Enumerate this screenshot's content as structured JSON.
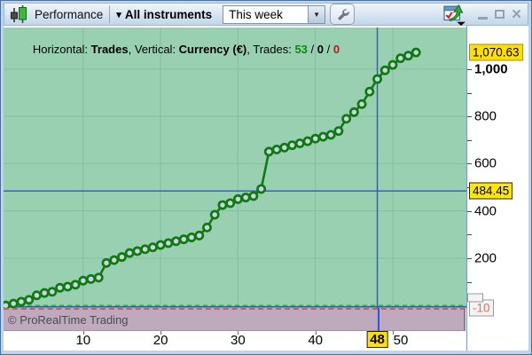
{
  "window": {
    "title": "Performance",
    "instrument_selector": {
      "label": "All instruments",
      "chevron": "▾"
    },
    "period_selector": {
      "value": "This week",
      "arrow": "▼"
    },
    "controls": {
      "minimize": "",
      "maximize": "",
      "close": "×"
    }
  },
  "info_bar": {
    "h_label": "Horizontal: ",
    "h_value": "Trades",
    "sep1": ", ",
    "v_label": "Vertical: ",
    "v_value": "Currency (€)",
    "sep2": ", ",
    "t_label": "Trades: ",
    "wins": "53",
    "slash1": " / ",
    "neutral": "0",
    "slash2": " / ",
    "losses": "0"
  },
  "footer": {
    "copyright": "© ProRealTime Trading"
  },
  "colors": {
    "plot_bg": "#99d0b1",
    "grid": "#83bfa0",
    "line": "#107a10",
    "marker_fill": "#c9d6e2",
    "crosshair": "#2d52e8",
    "zero_line": "#2fae2f",
    "bottom_line": "#2d52e8",
    "min_line": "#e05555",
    "negative_band": "#bfa9bd",
    "highlight_bg": "#ffe000"
  },
  "chart_data": {
    "type": "line",
    "xlabel": "Trades",
    "ylabel": "Currency (€)",
    "x_is_trade_index": true,
    "values": [
      0,
      8,
      16,
      24,
      43,
      53,
      58,
      75,
      80,
      88,
      105,
      112,
      118,
      180,
      192,
      205,
      222,
      230,
      238,
      246,
      256,
      264,
      272,
      280,
      288,
      296,
      330,
      384,
      425,
      433,
      450,
      457,
      463,
      493,
      651,
      660,
      668,
      678,
      686,
      695,
      706,
      714,
      722,
      738,
      790,
      818,
      852,
      905,
      958,
      995,
      1018,
      1046,
      1057,
      1070.63
    ],
    "x_ticks": [
      10,
      20,
      30,
      40,
      50
    ],
    "x_tick_labels": [
      "10",
      "20",
      "30",
      "40",
      "50"
    ],
    "y_ticks": [
      {
        "value": 1000,
        "label": "1,000",
        "bold": true
      },
      {
        "value": 800,
        "label": "800"
      },
      {
        "value": 600,
        "label": "600"
      },
      {
        "value": 400,
        "label": "400"
      },
      {
        "value": 200,
        "label": "200"
      }
    ],
    "y_minor_ticks": [
      100,
      200,
      300,
      400,
      500,
      600,
      700,
      800,
      900,
      1000
    ],
    "ylim": [
      -10,
      1176
    ],
    "xlim": [
      0,
      59.5
    ],
    "grid": true,
    "last_value": {
      "value": 1070.63,
      "label": "1,070.63"
    },
    "crosshair": {
      "trade": 48,
      "x_label": "48",
      "value": 484.45,
      "y_label": "484.45"
    },
    "min_value": {
      "value": -10,
      "label": "-10"
    },
    "zero_level": 0
  }
}
